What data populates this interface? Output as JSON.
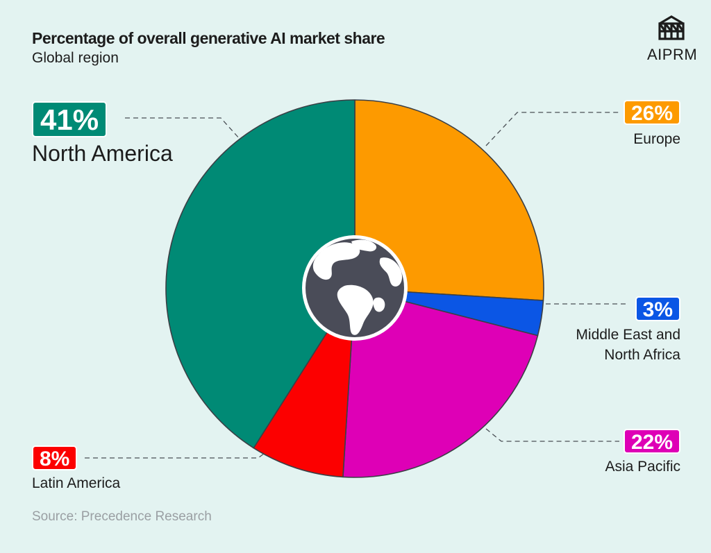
{
  "title": "Percentage of overall generative AI market share",
  "subtitle": "Global region",
  "source": "Source: Precedence Research",
  "logo": {
    "text": "AIPRM",
    "icon": "aiprm-logo-icon"
  },
  "center_icon": "globe-icon",
  "chart_data": {
    "type": "pie",
    "title": "Percentage of overall generative AI market share",
    "subtitle": "Global region",
    "unit": "%",
    "slices": [
      {
        "name": "Europe",
        "value": 26,
        "label": "26%",
        "color": "#fd9a00"
      },
      {
        "name": "Middle East and North Africa",
        "value": 3,
        "label": "3%",
        "color": "#0b56e5"
      },
      {
        "name": "Asia Pacific",
        "value": 22,
        "label": "22%",
        "color": "#de00b6"
      },
      {
        "name": "Latin America",
        "value": 8,
        "label": "8%",
        "color": "#fc0000"
      },
      {
        "name": "North America",
        "value": 41,
        "label": "41%",
        "color": "#008a75"
      }
    ]
  }
}
